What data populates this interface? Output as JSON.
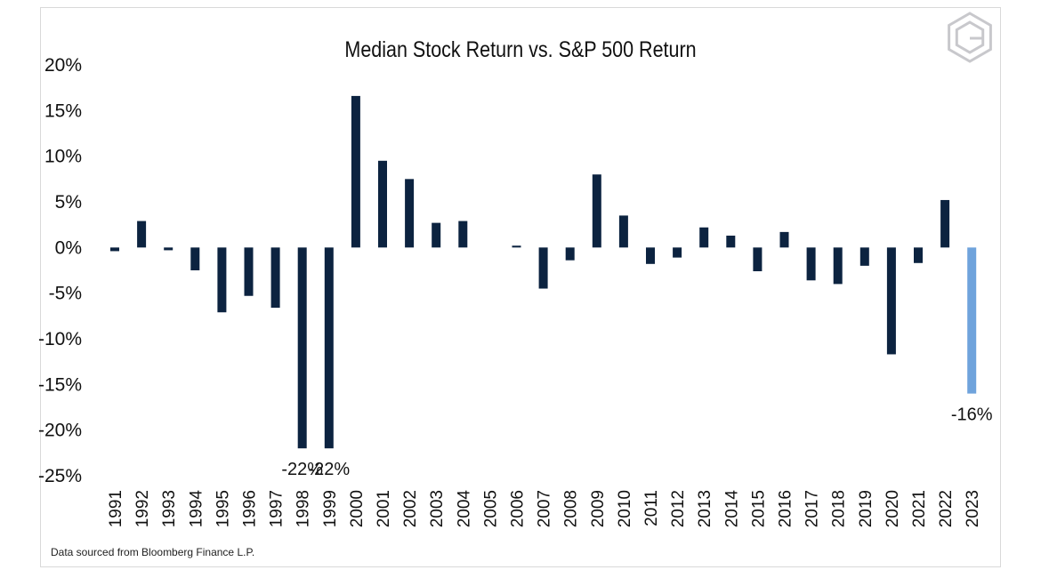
{
  "chart_data": {
    "type": "bar",
    "title": "Median Stock Return vs. S&P 500 Return",
    "xlabel": "",
    "ylabel": "",
    "ylim": [
      -25,
      20
    ],
    "yticks": [
      "20%",
      "15%",
      "10%",
      "5%",
      "0%",
      "-5%",
      "-10%",
      "-15%",
      "-20%",
      "-25%"
    ],
    "ytick_values": [
      20,
      15,
      10,
      5,
      0,
      -5,
      -10,
      -15,
      -20,
      -25
    ],
    "categories": [
      "1991",
      "1992",
      "1993",
      "1994",
      "1995",
      "1996",
      "1997",
      "1998",
      "1999",
      "2000",
      "2001",
      "2002",
      "2003",
      "2004",
      "2005",
      "2006",
      "2007",
      "2008",
      "2009",
      "2010",
      "2011",
      "2012",
      "2013",
      "2014",
      "2015",
      "2016",
      "2017",
      "2018",
      "2019",
      "2020",
      "2021",
      "2022",
      "2023"
    ],
    "values": [
      -0.4,
      2.9,
      -0.3,
      -2.5,
      -7.1,
      -5.3,
      -6.6,
      -22,
      -22,
      16.6,
      9.5,
      7.5,
      2.7,
      2.9,
      0,
      0.2,
      -4.5,
      -1.4,
      8.0,
      3.5,
      -1.8,
      -1.1,
      2.2,
      1.3,
      -2.6,
      1.7,
      -3.6,
      -4.0,
      -2.0,
      -11.7,
      -1.7,
      5.2,
      -16
    ],
    "grid": false,
    "legend": "none",
    "colors": {
      "default": "#0c2340",
      "highlight": "#6fa3dc"
    },
    "highlight_index": 32,
    "data_labels": [
      {
        "index": 7,
        "text": "-22%"
      },
      {
        "index": 8,
        "text": "-22%"
      },
      {
        "index": 32,
        "text": "-16%"
      }
    ]
  },
  "source_note": {
    "prefix": "Data sourced from ",
    "brand": "Bloomberg",
    "suffix": " Finance L.P."
  },
  "logo": {
    "icon": "hexagon-g-logo"
  }
}
